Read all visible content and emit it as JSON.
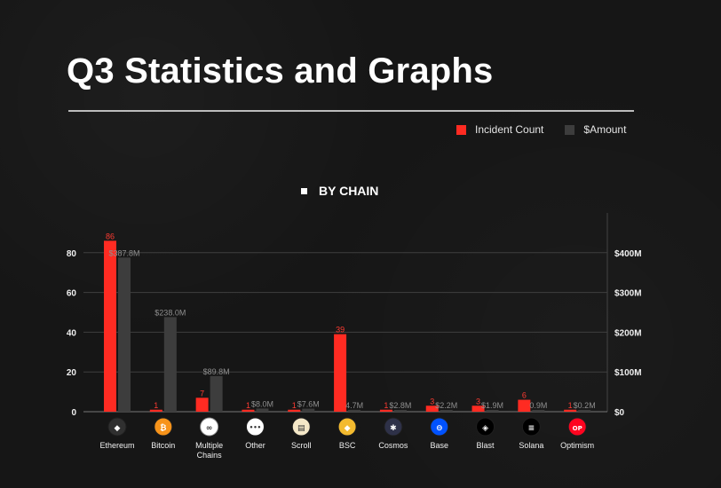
{
  "page": {
    "title": "Q3 Statistics and Graphs"
  },
  "legend": {
    "items": [
      {
        "label": "Incident Count",
        "color": "#ff2b22"
      },
      {
        "label": "$Amount",
        "color": "#3d3d3d"
      }
    ]
  },
  "chart_data": {
    "type": "bar",
    "title": "BY CHAIN",
    "categories": [
      "Ethereum",
      "Bitcoin",
      "Multiple Chains",
      "Other",
      "Scroll",
      "BSC",
      "Cosmos",
      "Base",
      "Blast",
      "Solana",
      "Optimism"
    ],
    "series": [
      {
        "name": "Incident Count",
        "axis": "left",
        "color": "#ff2b22",
        "values": [
          86,
          1,
          7,
          1,
          1,
          39,
          1,
          3,
          3,
          6,
          1
        ],
        "labels": [
          "86",
          "1",
          "7",
          "1",
          "1",
          "39",
          "1",
          "3",
          "3",
          "6",
          "1"
        ]
      },
      {
        "name": "$Amount",
        "axis": "right",
        "color": "#3d3d3d",
        "values_millions": [
          387.8,
          238.0,
          89.8,
          8.0,
          7.6,
          4.7,
          2.8,
          2.2,
          1.9,
          0.9,
          0.2
        ],
        "labels": [
          "$387.8M",
          "$238.0M",
          "$89.8M",
          "$8.0M",
          "$7.6M",
          "4.7M",
          "$2.8M",
          "$2.2M",
          "$1.9M",
          "0.9M",
          "$0.2M"
        ]
      }
    ],
    "left_axis": {
      "ticks": [
        0,
        20,
        40,
        60,
        80
      ],
      "tick_labels": [
        "0",
        "20",
        "40",
        "60",
        "80"
      ],
      "ylim": [
        0,
        100
      ]
    },
    "right_axis": {
      "ticks": [
        0,
        100,
        200,
        300,
        400
      ],
      "tick_labels": [
        "$0",
        "$100M",
        "$200M",
        "$300M",
        "$400M"
      ],
      "ylim": [
        0,
        500
      ]
    },
    "grid": true,
    "legend_position": "top-right",
    "icons": [
      "ethereum-icon",
      "bitcoin-icon",
      "multiple-chains-icon",
      "other-icon",
      "scroll-icon",
      "bsc-icon",
      "cosmos-icon",
      "base-icon",
      "blast-icon",
      "solana-icon",
      "optimism-icon"
    ],
    "icon_colors": [
      "#303030",
      "#f7931a",
      "#ffffff",
      "#ffffff",
      "#f5e8c8",
      "#f3ba2f",
      "#2e3148",
      "#0052ff",
      "#000000",
      "#000000",
      "#ff0420"
    ],
    "icon_glyphs": [
      "◆",
      "₿",
      "∞",
      "•••",
      "▤",
      "◆",
      "✱",
      "⊖",
      "◈",
      "≡",
      "OP"
    ]
  }
}
